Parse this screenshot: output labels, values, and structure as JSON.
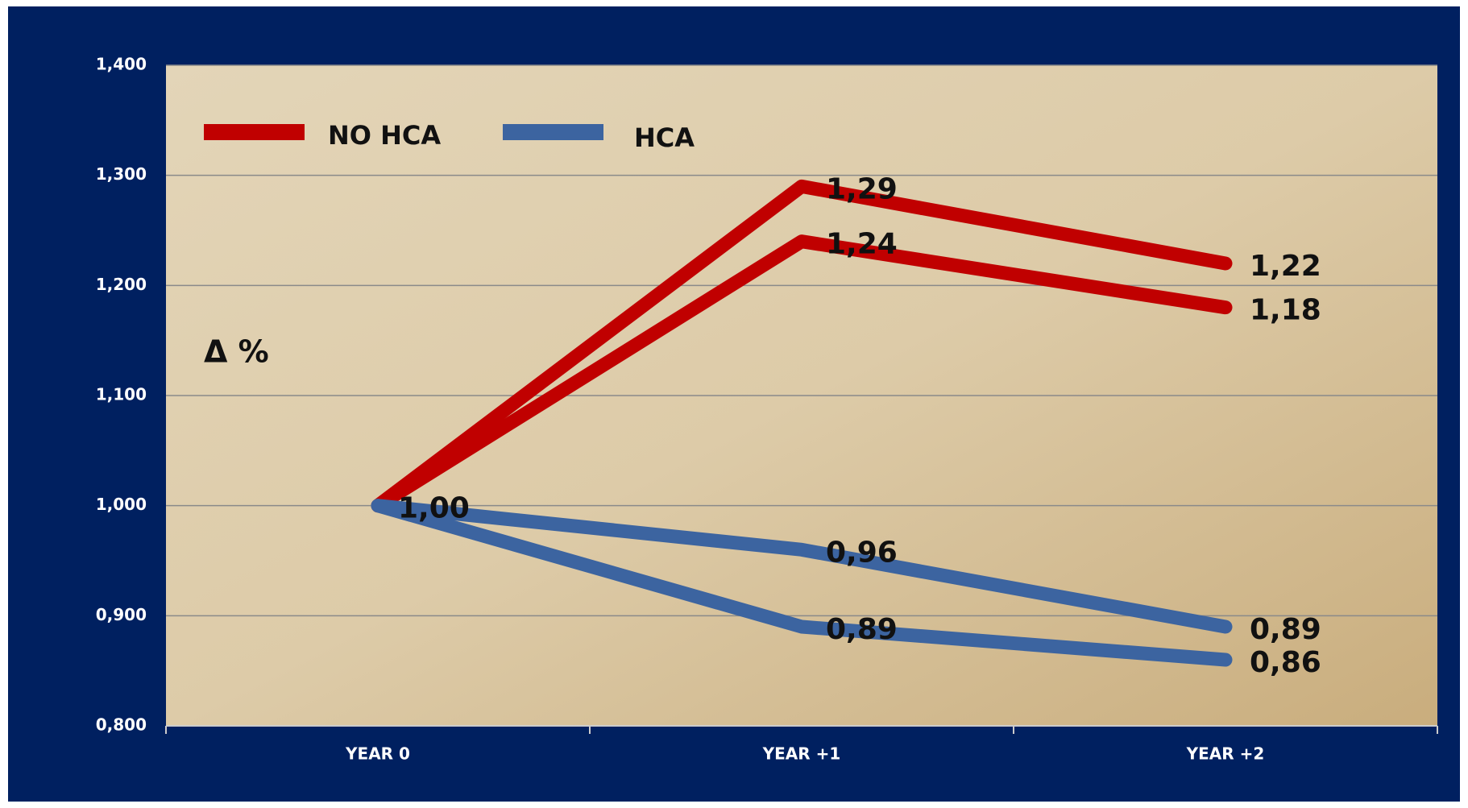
{
  "chart_data": {
    "type": "line",
    "categories": [
      "YEAR 0",
      "YEAR +1",
      "YEAR +2"
    ],
    "annotation": "Δ %",
    "ylim": [
      0.8,
      1.4
    ],
    "yticks": [
      {
        "value": 0.8,
        "label": "0,800"
      },
      {
        "value": 0.9,
        "label": "0,900"
      },
      {
        "value": 1.0,
        "label": "1,000"
      },
      {
        "value": 1.1,
        "label": "1,100"
      },
      {
        "value": 1.2,
        "label": "1,200"
      },
      {
        "value": 1.3,
        "label": "1,300"
      },
      {
        "value": 1.4,
        "label": "1,400"
      }
    ],
    "grid": true,
    "series": [
      {
        "name": "NO HCA",
        "color": "#c00000",
        "lines": [
          {
            "values": [
              1.0,
              1.29,
              1.22
            ],
            "value_labels": [
              "1,00",
              "1,29",
              "1,22"
            ]
          },
          {
            "values": [
              1.0,
              1.24,
              1.18
            ],
            "value_labels": [
              null,
              "1,24",
              "1,18"
            ]
          }
        ]
      },
      {
        "name": "HCA",
        "color": "#3c64a0",
        "lines": [
          {
            "values": [
              1.0,
              0.96,
              0.89
            ],
            "value_labels": [
              null,
              "0,96",
              "0,89"
            ]
          },
          {
            "values": [
              1.0,
              0.89,
              0.86
            ],
            "value_labels": [
              null,
              "0,89",
              "0,86"
            ]
          }
        ]
      }
    ]
  }
}
